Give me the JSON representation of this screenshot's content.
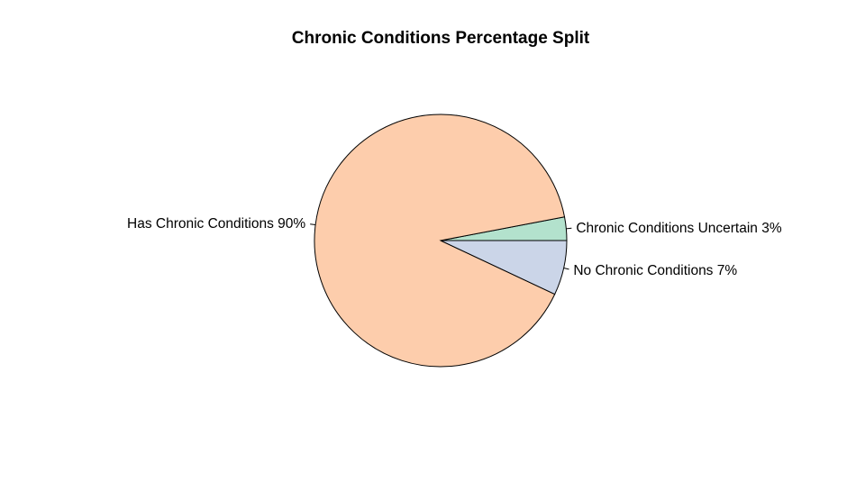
{
  "chart_data": {
    "type": "pie",
    "title": "Chronic Conditions Percentage Split",
    "start_angle_deg": 0,
    "direction": "counterclockwise",
    "slices": [
      {
        "label": "Chronic Conditions Uncertain 3%",
        "value": 3,
        "color": "#b3e2cd"
      },
      {
        "label": "Has Chronic Conditions 90%",
        "value": 90,
        "color": "#fdcdac"
      },
      {
        "label": "No Chronic Conditions 7%",
        "value": 7,
        "color": "#cbd5e8"
      }
    ],
    "border_color": "#000000"
  }
}
